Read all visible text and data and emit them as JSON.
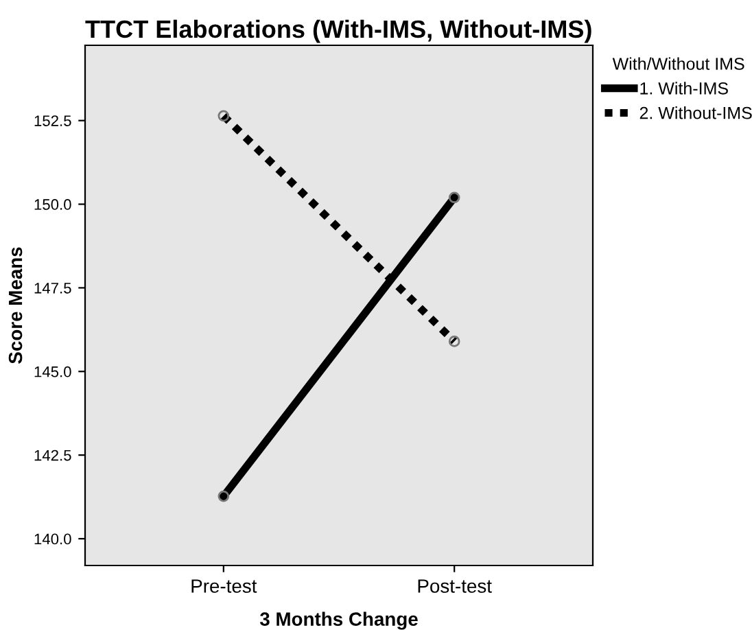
{
  "chart_data": {
    "type": "line",
    "title": "TTCT Elaborations (With-IMS, Without-IMS)",
    "xlabel": "3 Months Change",
    "ylabel": "Score Means",
    "legend_title": "With/Without IMS",
    "categories": [
      "Pre-test",
      "Post-test"
    ],
    "series": [
      {
        "name": "1. With-IMS",
        "color": "#000000",
        "values": [
          141.27,
          150.2
        ],
        "line_style": "solid"
      },
      {
        "name": "2. Without-IMS",
        "color": "#000000",
        "values": [
          152.64,
          145.9
        ],
        "line_style": "dotted"
      }
    ],
    "ylim": [
      139.2,
      154.75
    ],
    "yticks": [
      {
        "value": 140,
        "label": "140.0"
      },
      {
        "value": 142.5,
        "label": "142.5"
      },
      {
        "value": 145,
        "label": "145.0"
      },
      {
        "value": 147.5,
        "label": "147.5"
      },
      {
        "value": 150,
        "label": "150.0"
      },
      {
        "value": 152.5,
        "label": "152.5"
      }
    ],
    "marker": "circle",
    "grid": false,
    "legend": "top right"
  }
}
